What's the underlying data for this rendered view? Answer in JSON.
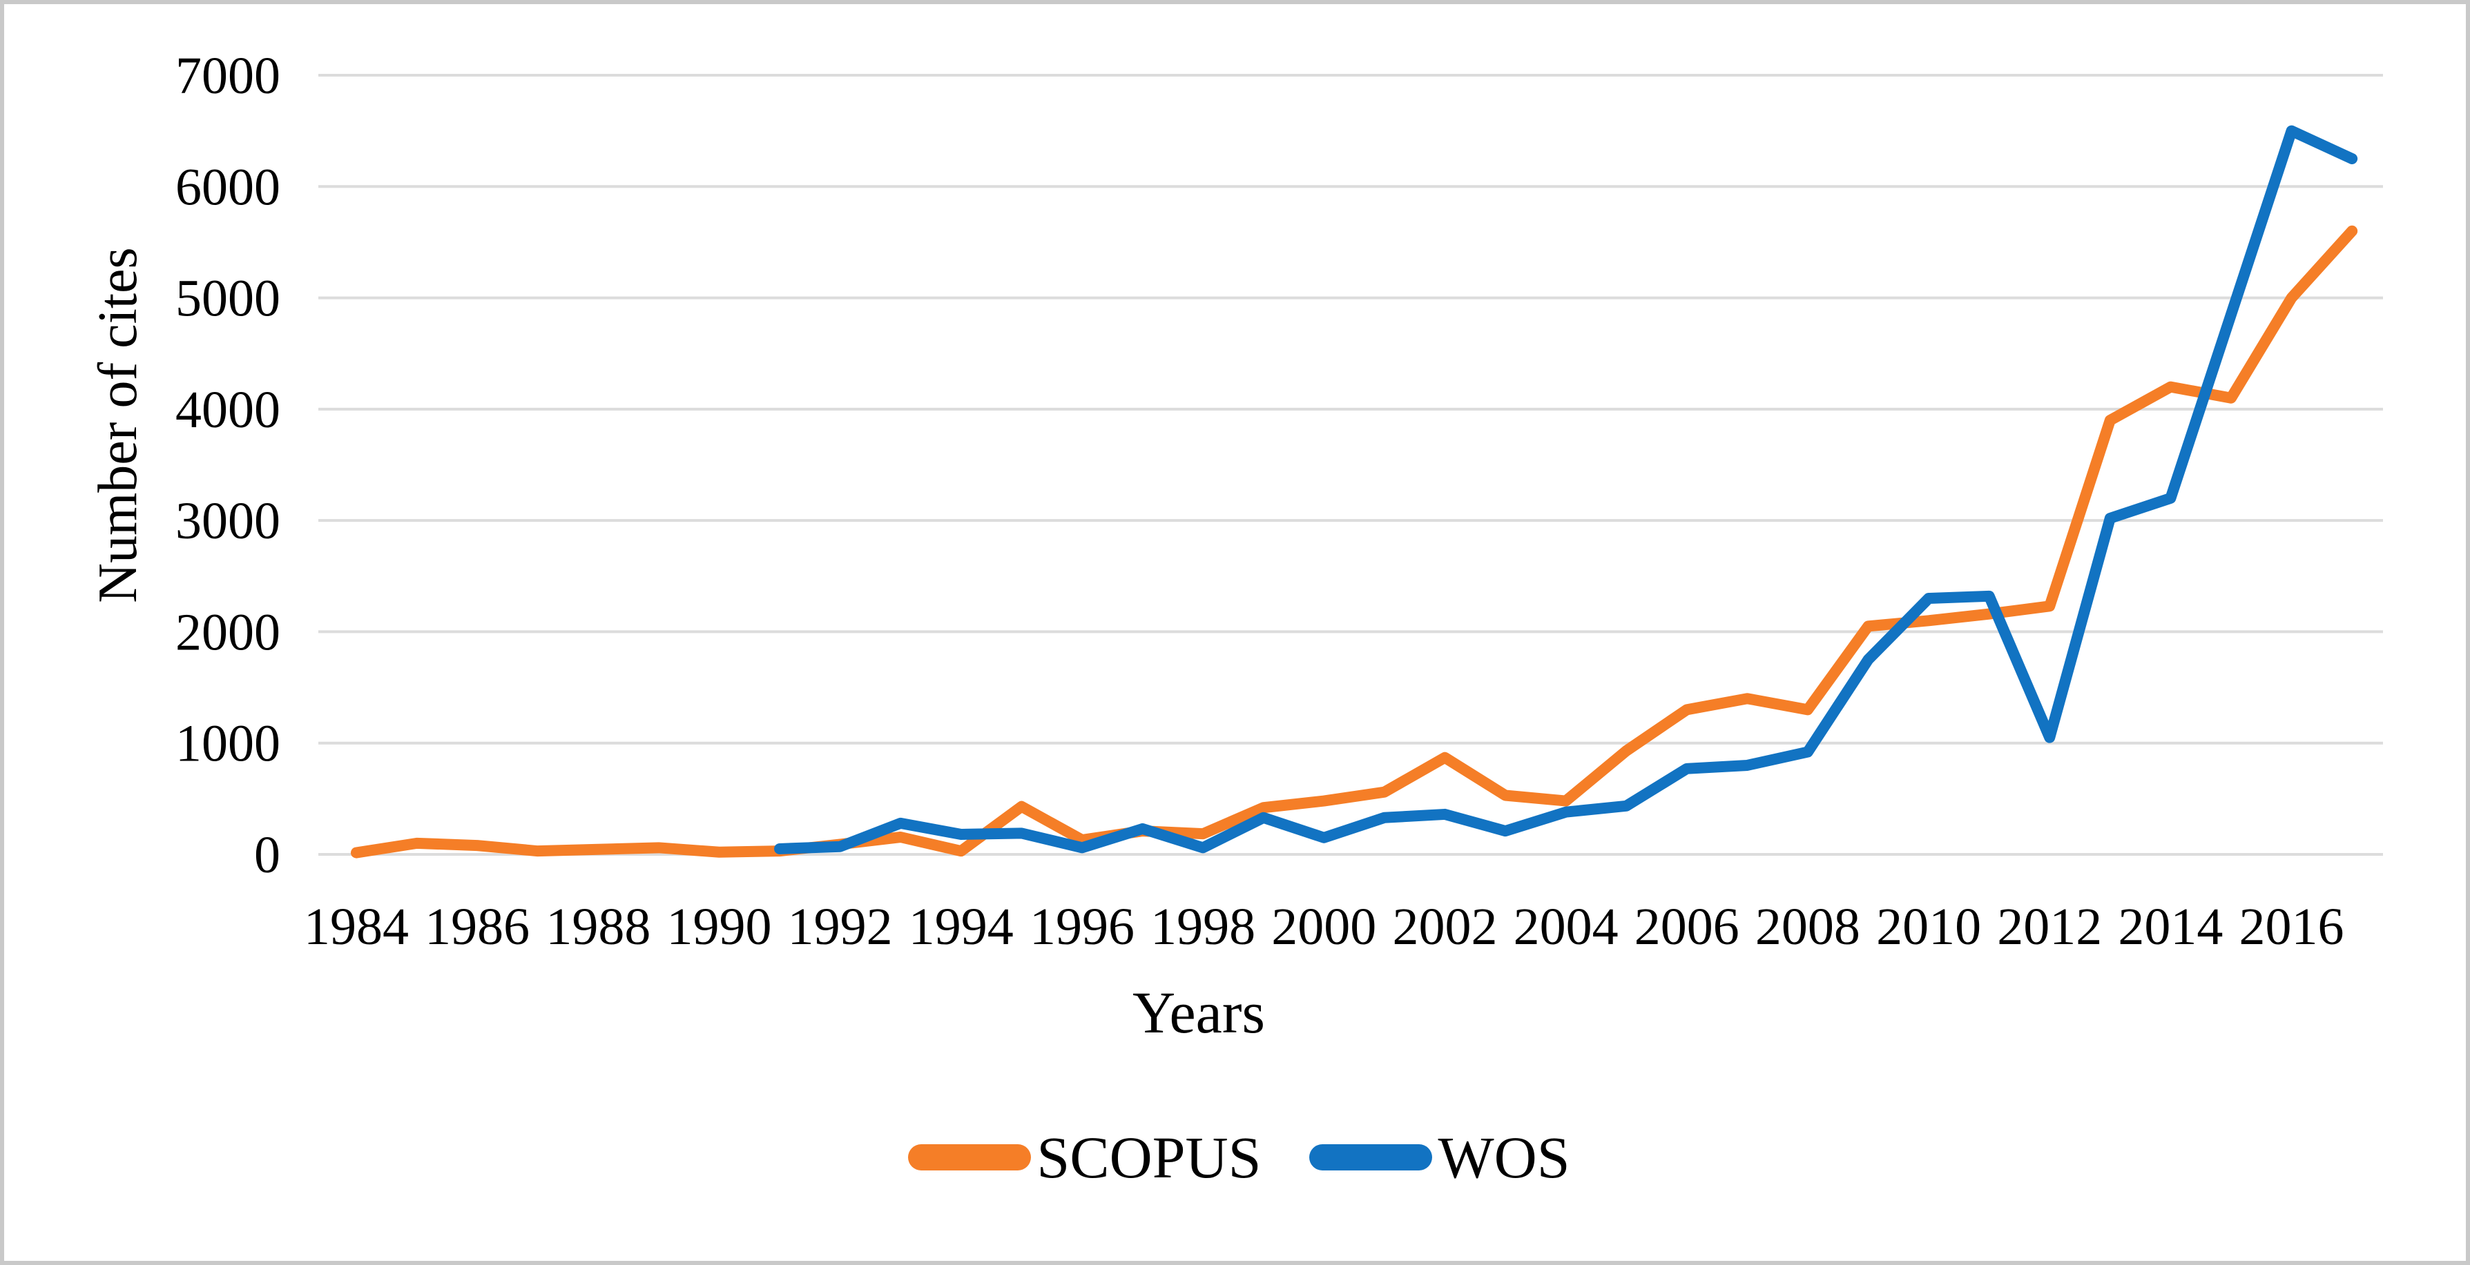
{
  "chart_data": {
    "type": "line",
    "title": "",
    "xlabel": "Years",
    "ylabel": "Number of cites",
    "x": [
      1984,
      1985,
      1986,
      1987,
      1988,
      1989,
      1990,
      1991,
      1992,
      1993,
      1994,
      1995,
      1996,
      1997,
      1998,
      1999,
      2000,
      2001,
      2002,
      2003,
      2004,
      2005,
      2006,
      2007,
      2008,
      2009,
      2010,
      2011,
      2012,
      2013,
      2014,
      2015,
      2016,
      2017
    ],
    "x_tick_labels": [
      "1984",
      "1986",
      "1988",
      "1990",
      "1992",
      "1994",
      "1996",
      "1998",
      "2000",
      "2002",
      "2004",
      "2006",
      "2008",
      "2010",
      "2012",
      "2014",
      "2016"
    ],
    "y_ticks": [
      0,
      1000,
      2000,
      3000,
      4000,
      5000,
      6000,
      7000
    ],
    "ylim": [
      0,
      7000
    ],
    "grid": "horizontal",
    "legend_position": "bottom-center",
    "series": [
      {
        "name": "SCOPUS",
        "color": "#F57E27",
        "values": [
          15,
          100,
          80,
          30,
          45,
          60,
          20,
          30,
          90,
          155,
          30,
          430,
          130,
          210,
          185,
          420,
          480,
          560,
          870,
          530,
          480,
          930,
          1300,
          1400,
          1300,
          2050,
          2100,
          2160,
          2230,
          3900,
          4200,
          4100,
          5000,
          5600
        ]
      },
      {
        "name": "WOS",
        "color": "#1273C2",
        "values": [
          null,
          null,
          null,
          null,
          null,
          null,
          null,
          50,
          70,
          280,
          180,
          190,
          60,
          230,
          60,
          330,
          150,
          330,
          360,
          210,
          380,
          435,
          770,
          800,
          920,
          1750,
          2300,
          2320,
          1050,
          3020,
          3200,
          4850,
          6500,
          6250
        ]
      }
    ]
  },
  "colors": {
    "gridline": "#DCDCDC",
    "border": "#C9C9C9",
    "background": "#FFFFFF",
    "text": "#000000"
  }
}
